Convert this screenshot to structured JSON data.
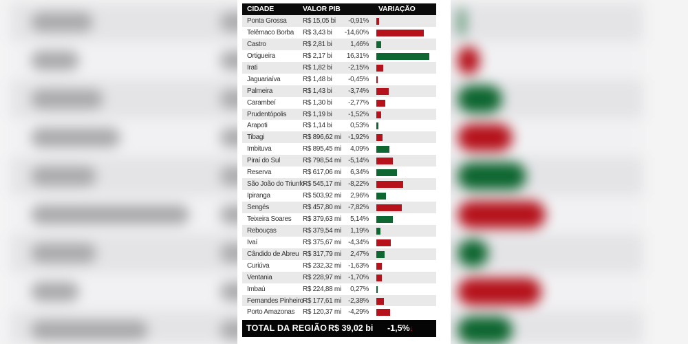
{
  "table": {
    "headers": {
      "city": "CIDADE",
      "pib": "VALOR PIB",
      "variation": "VARIAÇÃO"
    },
    "rows": [
      {
        "city": "Ponta Grossa",
        "pib": "R$ 15,05 bi",
        "variation": "-0,91%"
      },
      {
        "city": "Telêmaco Borba",
        "pib": "R$ 3,43 bi",
        "variation": "-14,60%"
      },
      {
        "city": "Castro",
        "pib": "R$ 2,81 bi",
        "variation": "1,46%"
      },
      {
        "city": "Ortigueira",
        "pib": "R$ 2,17 bi",
        "variation": "16,31%"
      },
      {
        "city": "Irati",
        "pib": "R$ 1,82 bi",
        "variation": "-2,15%"
      },
      {
        "city": "Jaguariaíva",
        "pib": "R$ 1,48 bi",
        "variation": "-0,45%"
      },
      {
        "city": "Palmeira",
        "pib": "R$ 1,43 bi",
        "variation": "-3,74%"
      },
      {
        "city": "Carambeí",
        "pib": "R$ 1,30 bi",
        "variation": "-2,77%"
      },
      {
        "city": "Prudentópolis",
        "pib": "R$ 1,19 bi",
        "variation": "-1,52%"
      },
      {
        "city": "Arapoti",
        "pib": "R$ 1,14 bi",
        "variation": "0,53%"
      },
      {
        "city": "Tibagi",
        "pib": "R$ 896,62 mi",
        "variation": "-1,92%"
      },
      {
        "city": "Imbituva",
        "pib": "R$ 895,45 mi",
        "variation": "4,09%"
      },
      {
        "city": "Piraí do Sul",
        "pib": "R$ 798,54 mi",
        "variation": "-5,14%"
      },
      {
        "city": "Reserva",
        "pib": "R$ 617,06 mi",
        "variation": "6,34%"
      },
      {
        "city": "São João do Triunfo",
        "pib": "R$ 545,17 mi",
        "variation": "-8,22%"
      },
      {
        "city": "Ipiranga",
        "pib": "R$ 503,92 mi",
        "variation": "2,96%"
      },
      {
        "city": "Sengés",
        "pib": "R$ 457,80 mi",
        "variation": "-7,82%"
      },
      {
        "city": "Teixeira Soares",
        "pib": "R$ 379,63 mi",
        "variation": "5,14%"
      },
      {
        "city": "Rebouças",
        "pib": "R$ 379,54 mi",
        "variation": "1,19%"
      },
      {
        "city": "Ivaí",
        "pib": "R$ 375,67 mi",
        "variation": "-4,34%"
      },
      {
        "city": "Cândido de Abreu",
        "pib": "R$ 317,79 mi",
        "variation": "2,47%"
      },
      {
        "city": "Curiúva",
        "pib": "R$ 232,32 mi",
        "variation": "-1,63%"
      },
      {
        "city": "Ventania",
        "pib": "R$ 228,97 mi",
        "variation": "-1,70%"
      },
      {
        "city": "Imbaú",
        "pib": "R$ 224,88 mi",
        "variation": "0,27%"
      },
      {
        "city": "Fernandes Pinheiro",
        "pib": "R$ 177,61 mi",
        "variation": "-2,38%"
      },
      {
        "city": "Porto Amazonas",
        "pib": "R$ 120,37 mi",
        "variation": "-4,29%"
      }
    ],
    "total": {
      "label": "TOTAL DA REGIÃO",
      "pib": "R$ 39,02 bi",
      "variation": "-1,5%",
      "arrow": "down-arrow-icon"
    }
  },
  "colors": {
    "negative": "#b5121b",
    "positive": "#0e6630",
    "header_bg": "#0b0b0b",
    "row_alt": "#e9e9ea"
  },
  "chart_data": {
    "type": "bar",
    "orientation": "horizontal",
    "title": "",
    "xlabel": "VARIAÇÃO",
    "ylabel": "CIDADE",
    "categories": [
      "Ponta Grossa",
      "Telêmaco Borba",
      "Castro",
      "Ortigueira",
      "Irati",
      "Jaguariaíva",
      "Palmeira",
      "Carambeí",
      "Prudentópolis",
      "Arapoti",
      "Tibagi",
      "Imbituva",
      "Piraí do Sul",
      "Reserva",
      "São João do Triunfo",
      "Ipiranga",
      "Sengés",
      "Teixeira Soares",
      "Rebouças",
      "Ivaí",
      "Cândido de Abreu",
      "Curiúva",
      "Ventania",
      "Imbaú",
      "Fernandes Pinheiro",
      "Porto Amazonas"
    ],
    "series": [
      {
        "name": "Variação (%)",
        "values": [
          -0.91,
          -14.6,
          1.46,
          16.31,
          -2.15,
          -0.45,
          -3.74,
          -2.77,
          -1.52,
          0.53,
          -1.92,
          4.09,
          -5.14,
          6.34,
          -8.22,
          2.96,
          -7.82,
          5.14,
          1.19,
          -4.34,
          2.47,
          -1.63,
          -1.7,
          0.27,
          -2.38,
          -4.29
        ]
      },
      {
        "name": "Valor PIB",
        "values": [
          "R$ 15,05 bi",
          "R$ 3,43 bi",
          "R$ 2,81 bi",
          "R$ 2,17 bi",
          "R$ 1,82 bi",
          "R$ 1,48 bi",
          "R$ 1,43 bi",
          "R$ 1,30 bi",
          "R$ 1,19 bi",
          "R$ 1,14 bi",
          "R$ 896,62 mi",
          "R$ 895,45 mi",
          "R$ 798,54 mi",
          "R$ 617,06 mi",
          "R$ 545,17 mi",
          "R$ 503,92 mi",
          "R$ 457,80 mi",
          "R$ 379,63 mi",
          "R$ 379,54 mi",
          "R$ 375,67 mi",
          "R$ 317,79 mi",
          "R$ 232,32 mi",
          "R$ 228,97 mi",
          "R$ 224,88 mi",
          "R$ 177,61 mi",
          "R$ 120,37 mi"
        ]
      }
    ],
    "bar_magnitude_encoding": "absolute value; red = negative, green = positive",
    "total": {
      "label": "TOTAL DA REGIÃO",
      "pib": "R$ 39,02 bi",
      "variation": -1.5
    },
    "grid": false,
    "legend": null
  }
}
